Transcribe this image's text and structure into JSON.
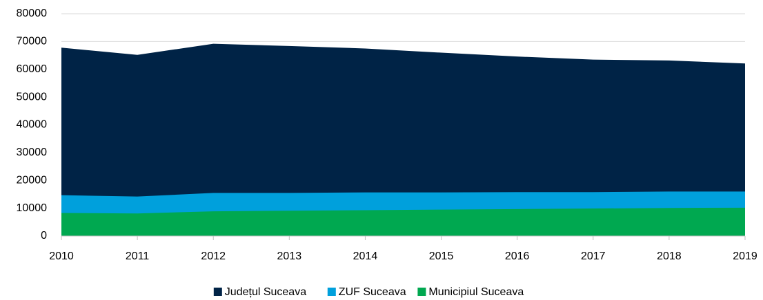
{
  "chart_data": {
    "type": "area",
    "x": [
      2010,
      2011,
      2012,
      2013,
      2014,
      2015,
      2016,
      2017,
      2018,
      2019
    ],
    "xlim": [
      2010,
      2019
    ],
    "xticks": [
      2010,
      2011,
      2012,
      2013,
      2014,
      2015,
      2016,
      2017,
      2018,
      2019
    ],
    "ylim": [
      0,
      80000
    ],
    "yticks": [
      0,
      10000,
      20000,
      30000,
      40000,
      50000,
      60000,
      70000,
      80000
    ],
    "grid": true,
    "legend": "bottom",
    "series": [
      {
        "name": "Județul Suceava",
        "color": "#002346",
        "values": [
          67800,
          65200,
          69200,
          68400,
          67500,
          66000,
          64600,
          63500,
          63200,
          62100
        ]
      },
      {
        "name": "ZUF Suceava",
        "color": "#00a0dc",
        "values": [
          14700,
          14200,
          15500,
          15500,
          15700,
          15700,
          15800,
          15800,
          16000,
          16000
        ]
      },
      {
        "name": "Municipiul Suceava",
        "color": "#00a850",
        "values": [
          8300,
          8100,
          8900,
          9100,
          9300,
          9500,
          9700,
          9900,
          10100,
          10200
        ]
      }
    ]
  }
}
